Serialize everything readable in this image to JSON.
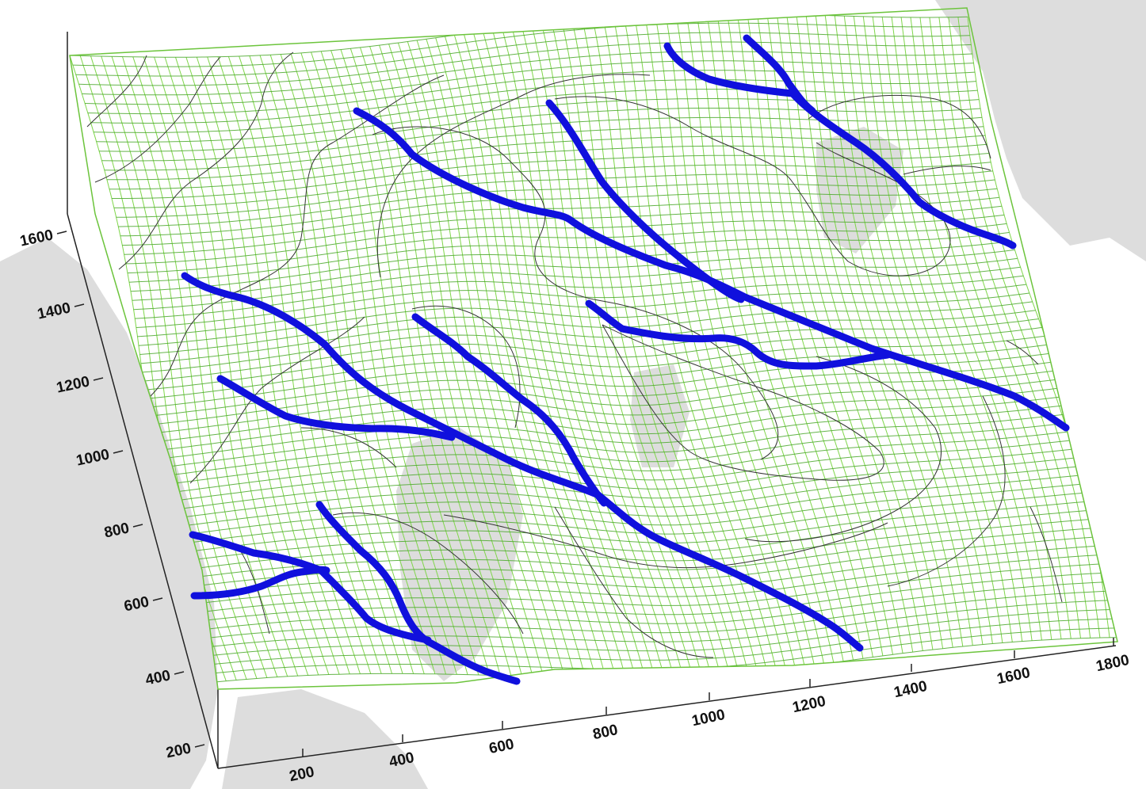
{
  "axes": {
    "x_ticks": [
      "200",
      "400",
      "600",
      "800",
      "1000",
      "1200",
      "1400",
      "1600",
      "1800"
    ],
    "y_ticks": [
      "200",
      "400",
      "600",
      "800",
      "1000",
      "1200",
      "1400",
      "1600"
    ]
  },
  "colors": {
    "mesh": "#7fd64a",
    "mesh_dark": "#4aa82a",
    "contour": "#333333",
    "fault": "#1010dd",
    "land": "#d2d2d2",
    "background": "#ffffff"
  },
  "layers": [
    "basemap-land",
    "deformed-mesh",
    "contour-lines",
    "fault-traces"
  ]
}
